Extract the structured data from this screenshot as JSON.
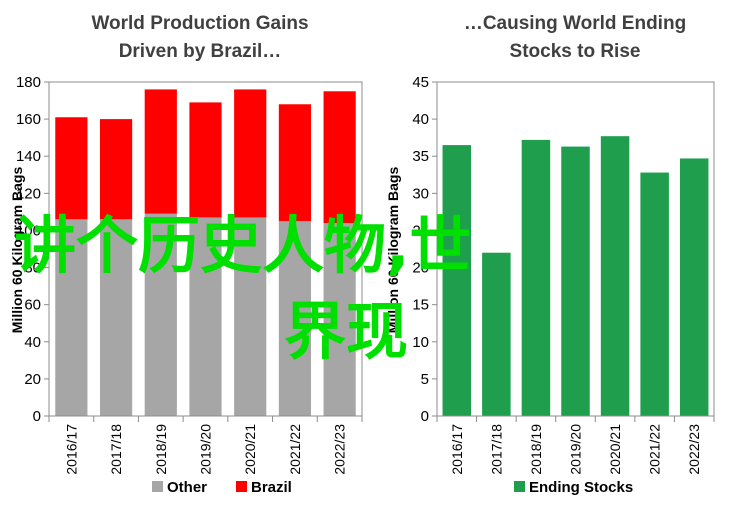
{
  "chart_data": [
    {
      "type": "bar",
      "stacked": true,
      "title_lines": [
        "World Production Gains",
        "Driven by Brazil…"
      ],
      "ylabel": "Million 60 Kilogram Bags",
      "xlabel": "",
      "ylim": [
        0,
        180
      ],
      "yticks": [
        0,
        20,
        40,
        60,
        80,
        100,
        120,
        140,
        160,
        180
      ],
      "categories": [
        "2016/17",
        "2017/18",
        "2018/19",
        "2019/20",
        "2020/21",
        "2021/22",
        "2022/23"
      ],
      "series": [
        {
          "name": "Other",
          "color": "#a6a6a6",
          "values": [
            106,
            106,
            109,
            107,
            107,
            105,
            104
          ]
        },
        {
          "name": "Brazil",
          "color": "#ff0000",
          "values": [
            55,
            54,
            67,
            62,
            69,
            63,
            71
          ]
        }
      ],
      "legend_position": "bottom",
      "grid": false
    },
    {
      "type": "bar",
      "title_lines": [
        "…Causing World Ending",
        "Stocks to Rise"
      ],
      "ylabel": "Million 60 Kilogram Bags",
      "xlabel": "",
      "ylim": [
        0,
        45
      ],
      "yticks": [
        0,
        5,
        10,
        15,
        20,
        25,
        30,
        35,
        40,
        45
      ],
      "categories": [
        "2016/17",
        "2017/18",
        "2018/19",
        "2019/20",
        "2020/21",
        "2021/22",
        "2022/23"
      ],
      "series": [
        {
          "name": "Ending Stocks",
          "color": "#1f9e4e",
          "values": [
            36.5,
            22,
            37.2,
            36.3,
            37.7,
            32.8,
            34.7
          ]
        }
      ],
      "legend_position": "bottom",
      "grid": false
    }
  ],
  "overlay": {
    "line1": "讲个历史人物,世",
    "line2": "界现",
    "color": "#00e000"
  }
}
